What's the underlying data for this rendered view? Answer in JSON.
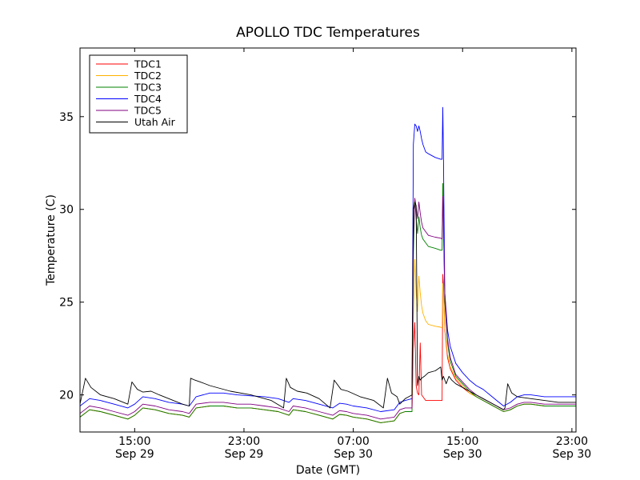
{
  "chart_data": {
    "type": "line",
    "title": "APOLLO TDC Temperatures",
    "xlabel": "Date (GMT)",
    "ylabel": "Temperature (C)",
    "xlim": [
      11.0,
      47.3
    ],
    "ylim": [
      18.0,
      38.7
    ],
    "grid": false,
    "legend_position": "top-left",
    "yticks": [
      20,
      25,
      30,
      35
    ],
    "xticks": [
      {
        "x": 15,
        "time": "15:00",
        "date": "Sep 29"
      },
      {
        "x": 23,
        "time": "23:00",
        "date": "Sep 29"
      },
      {
        "x": 31,
        "time": "07:00",
        "date": "Sep 30"
      },
      {
        "x": 39,
        "time": "15:00",
        "date": "Sep 30"
      },
      {
        "x": 47,
        "time": "23:00",
        "date": "Sep 30"
      }
    ],
    "series": [
      {
        "name": "TDC1",
        "color": "#ff0000",
        "x": [
          11.0,
          11.7,
          12.5,
          13.5,
          14.5,
          15.0,
          15.6,
          16.5,
          17.5,
          18.5,
          19.0,
          19.5,
          20.5,
          21.5,
          22.5,
          23.5,
          24.5,
          25.5,
          26.3,
          26.6,
          27.5,
          28.5,
          29.5,
          30.0,
          30.5,
          31.0,
          32.0,
          33.0,
          34.0,
          34.4,
          34.8,
          35.3,
          35.4,
          35.5,
          35.6,
          35.7,
          35.8,
          35.9,
          36.0,
          36.1,
          36.3,
          36.5,
          37.0,
          37.4,
          37.5,
          37.55,
          37.6,
          37.7,
          37.9,
          38.1,
          38.5,
          39.0,
          39.5,
          40.0,
          40.5,
          41.0,
          41.5,
          42.0,
          42.5,
          43.0,
          43.5,
          44.0,
          45.0,
          46.0,
          47.3
        ],
        "y": [
          18.8,
          19.2,
          19.1,
          18.9,
          18.7,
          18.9,
          19.3,
          19.2,
          19.0,
          18.9,
          18.8,
          19.3,
          19.4,
          19.4,
          19.3,
          19.3,
          19.2,
          19.1,
          18.9,
          19.2,
          19.1,
          18.9,
          18.7,
          18.95,
          18.9,
          18.8,
          18.7,
          18.5,
          18.6,
          19.0,
          19.1,
          19.1,
          22.5,
          23.9,
          20.5,
          20.1,
          20.0,
          22.8,
          20.0,
          19.9,
          19.7,
          19.7,
          19.7,
          19.7,
          19.7,
          26.5,
          26.0,
          23.5,
          22.0,
          21.4,
          20.8,
          20.4,
          20.1,
          19.9,
          19.7,
          19.5,
          19.3,
          19.1,
          19.2,
          19.4,
          19.5,
          19.5,
          19.4,
          19.4,
          19.4
        ]
      },
      {
        "name": "TDC2",
        "color": "#ffb000",
        "x": [
          11.0,
          11.7,
          12.5,
          13.5,
          14.5,
          15.0,
          15.6,
          16.5,
          17.5,
          18.5,
          19.0,
          19.5,
          20.5,
          21.5,
          22.5,
          23.5,
          24.5,
          25.5,
          26.3,
          26.6,
          27.5,
          28.5,
          29.5,
          30.0,
          30.5,
          31.0,
          32.0,
          33.0,
          34.0,
          34.4,
          34.8,
          35.3,
          35.4,
          35.5,
          35.6,
          35.7,
          35.8,
          35.9,
          36.0,
          36.1,
          36.3,
          36.5,
          37.0,
          37.4,
          37.5,
          37.55,
          37.6,
          37.7,
          37.9,
          38.1,
          38.5,
          39.0,
          39.5,
          40.0,
          40.5,
          41.0,
          41.5,
          42.0,
          42.5,
          43.0,
          43.5,
          44.0,
          45.0,
          46.0,
          47.3
        ],
        "y": [
          18.8,
          19.2,
          19.1,
          18.9,
          18.7,
          18.9,
          19.3,
          19.2,
          19.0,
          18.9,
          18.8,
          19.3,
          19.4,
          19.4,
          19.3,
          19.3,
          19.2,
          19.1,
          18.9,
          19.2,
          19.1,
          18.9,
          18.7,
          18.95,
          18.9,
          18.8,
          18.7,
          18.5,
          18.6,
          19.0,
          19.1,
          19.1,
          24.0,
          27.3,
          25.5,
          24.5,
          26.4,
          25.5,
          24.8,
          24.4,
          24.0,
          23.8,
          23.7,
          23.65,
          23.6,
          26.0,
          25.5,
          23.6,
          22.2,
          21.5,
          20.9,
          20.5,
          20.1,
          19.9,
          19.7,
          19.5,
          19.3,
          19.1,
          19.2,
          19.4,
          19.5,
          19.5,
          19.4,
          19.4,
          19.4
        ]
      },
      {
        "name": "TDC3",
        "color": "#008000",
        "x": [
          11.0,
          11.7,
          12.5,
          13.5,
          14.5,
          15.0,
          15.6,
          16.5,
          17.5,
          18.5,
          19.0,
          19.5,
          20.5,
          21.5,
          22.5,
          23.5,
          24.5,
          25.5,
          26.3,
          26.6,
          27.5,
          28.5,
          29.5,
          30.0,
          30.5,
          31.0,
          32.0,
          33.0,
          34.0,
          34.4,
          34.8,
          35.3,
          35.4,
          35.5,
          35.6,
          35.7,
          35.8,
          35.9,
          36.0,
          36.1,
          36.3,
          36.5,
          37.0,
          37.4,
          37.5,
          37.55,
          37.6,
          37.7,
          37.9,
          38.1,
          38.5,
          39.0,
          39.5,
          40.0,
          40.5,
          41.0,
          41.5,
          42.0,
          42.5,
          43.0,
          43.5,
          44.0,
          45.0,
          46.0,
          47.3
        ],
        "y": [
          18.8,
          19.2,
          19.1,
          18.9,
          18.7,
          18.9,
          19.3,
          19.2,
          19.0,
          18.9,
          18.8,
          19.3,
          19.4,
          19.4,
          19.3,
          19.3,
          19.2,
          19.1,
          18.9,
          19.2,
          19.1,
          18.9,
          18.7,
          18.95,
          18.9,
          18.8,
          18.7,
          18.5,
          18.6,
          19.0,
          19.1,
          19.1,
          27.5,
          30.6,
          29.5,
          28.7,
          29.6,
          29.0,
          28.6,
          28.4,
          28.2,
          28.0,
          27.9,
          27.8,
          27.8,
          31.4,
          29.5,
          25.0,
          22.8,
          21.8,
          21.0,
          20.6,
          20.2,
          19.9,
          19.7,
          19.5,
          19.3,
          19.1,
          19.2,
          19.4,
          19.5,
          19.5,
          19.4,
          19.4,
          19.4
        ]
      },
      {
        "name": "TDC4",
        "color": "#0000ff",
        "x": [
          11.0,
          11.7,
          12.5,
          13.5,
          14.5,
          15.0,
          15.6,
          16.5,
          17.5,
          18.5,
          19.0,
          19.5,
          20.5,
          21.5,
          22.5,
          23.5,
          24.5,
          25.5,
          26.3,
          26.6,
          27.5,
          28.5,
          29.5,
          30.0,
          30.5,
          31.0,
          32.0,
          33.0,
          34.0,
          34.4,
          34.8,
          35.3,
          35.4,
          35.5,
          35.6,
          35.7,
          35.8,
          35.9,
          36.0,
          36.1,
          36.3,
          36.5,
          37.0,
          37.4,
          37.5,
          37.55,
          37.6,
          37.7,
          37.9,
          38.1,
          38.5,
          39.0,
          39.5,
          40.0,
          40.5,
          41.0,
          41.5,
          42.0,
          42.5,
          43.0,
          43.5,
          44.0,
          45.0,
          46.0,
          47.3
        ],
        "y": [
          19.4,
          19.8,
          19.7,
          19.5,
          19.3,
          19.5,
          19.9,
          19.8,
          19.6,
          19.5,
          19.4,
          19.9,
          20.1,
          20.1,
          20.0,
          19.95,
          19.9,
          19.8,
          19.6,
          19.8,
          19.7,
          19.5,
          19.3,
          19.55,
          19.5,
          19.4,
          19.3,
          19.1,
          19.2,
          19.6,
          19.7,
          19.8,
          33.5,
          34.6,
          34.5,
          34.2,
          34.5,
          34.2,
          33.8,
          33.5,
          33.1,
          33.0,
          32.8,
          32.7,
          32.7,
          35.5,
          33.0,
          25.5,
          23.5,
          22.6,
          21.7,
          21.2,
          20.8,
          20.5,
          20.3,
          20.0,
          19.7,
          19.4,
          19.6,
          19.9,
          20.0,
          20.0,
          19.9,
          19.9,
          19.9
        ]
      },
      {
        "name": "TDC5",
        "color": "#800080",
        "x": [
          11.0,
          11.7,
          12.5,
          13.5,
          14.5,
          15.0,
          15.6,
          16.5,
          17.5,
          18.5,
          19.0,
          19.5,
          20.5,
          21.5,
          22.5,
          23.5,
          24.5,
          25.5,
          26.3,
          26.6,
          27.5,
          28.5,
          29.5,
          30.0,
          30.5,
          31.0,
          32.0,
          33.0,
          34.0,
          34.4,
          34.8,
          35.3,
          35.4,
          35.5,
          35.6,
          35.7,
          35.8,
          35.9,
          36.0,
          36.1,
          36.3,
          36.5,
          37.0,
          37.4,
          37.5,
          37.55,
          37.6,
          37.7,
          37.9,
          38.1,
          38.5,
          39.0,
          39.5,
          40.0,
          40.5,
          41.0,
          41.5,
          42.0,
          42.5,
          43.0,
          43.5,
          44.0,
          45.0,
          46.0,
          47.3
        ],
        "y": [
          19.0,
          19.4,
          19.3,
          19.1,
          18.9,
          19.1,
          19.5,
          19.4,
          19.2,
          19.1,
          19.0,
          19.5,
          19.6,
          19.6,
          19.5,
          19.5,
          19.4,
          19.3,
          19.1,
          19.4,
          19.3,
          19.1,
          18.9,
          19.15,
          19.1,
          19.0,
          18.9,
          18.7,
          18.8,
          19.2,
          19.3,
          19.3,
          28.5,
          30.6,
          30.1,
          29.5,
          30.4,
          29.8,
          29.3,
          29.0,
          28.8,
          28.6,
          28.5,
          28.45,
          28.4,
          30.7,
          29.0,
          25.5,
          23.0,
          22.0,
          21.1,
          20.7,
          20.3,
          20.0,
          19.8,
          19.6,
          19.4,
          19.2,
          19.3,
          19.5,
          19.6,
          19.6,
          19.5,
          19.5,
          19.5
        ]
      },
      {
        "name": "Utah Air",
        "color": "#000000",
        "x": [
          11.0,
          11.4,
          11.8,
          12.5,
          13.5,
          14.5,
          14.8,
          15.2,
          15.6,
          16.2,
          16.8,
          17.5,
          18.5,
          19.0,
          19.1,
          19.4,
          19.8,
          20.5,
          22.0,
          23.5,
          25.0,
          25.9,
          26.1,
          26.4,
          26.9,
          27.6,
          28.5,
          29.3,
          29.6,
          30.1,
          30.6,
          31.5,
          32.5,
          33.2,
          33.5,
          33.8,
          34.2,
          34.4,
          34.8,
          35.3,
          35.4,
          35.5,
          35.6,
          35.7,
          35.8,
          35.9,
          36.0,
          36.2,
          36.5,
          37.0,
          37.4,
          37.5,
          37.6,
          37.8,
          38.0,
          38.2,
          38.5,
          39.0,
          39.5,
          40.0,
          40.5,
          41.0,
          41.5,
          42.0,
          42.1,
          42.3,
          42.6,
          43.0,
          44.0,
          45.0,
          46.0,
          47.3
        ],
        "y": [
          19.5,
          20.9,
          20.4,
          20.0,
          19.8,
          19.5,
          20.7,
          20.3,
          20.15,
          20.2,
          20.0,
          19.8,
          19.5,
          19.4,
          20.9,
          20.8,
          20.7,
          20.5,
          20.2,
          20.0,
          19.7,
          19.3,
          20.9,
          20.4,
          20.2,
          20.1,
          19.8,
          19.3,
          20.8,
          20.3,
          20.2,
          19.9,
          19.7,
          19.3,
          20.9,
          20.1,
          19.9,
          19.5,
          19.8,
          20.0,
          30.0,
          30.4,
          30.2,
          20.5,
          21.0,
          20.8,
          20.9,
          21.0,
          21.2,
          21.3,
          21.5,
          20.8,
          21.0,
          20.6,
          21.0,
          20.8,
          20.6,
          20.4,
          20.2,
          20.0,
          19.8,
          19.6,
          19.4,
          19.2,
          19.3,
          20.6,
          20.1,
          19.9,
          19.8,
          19.7,
          19.6,
          19.6
        ]
      }
    ]
  }
}
